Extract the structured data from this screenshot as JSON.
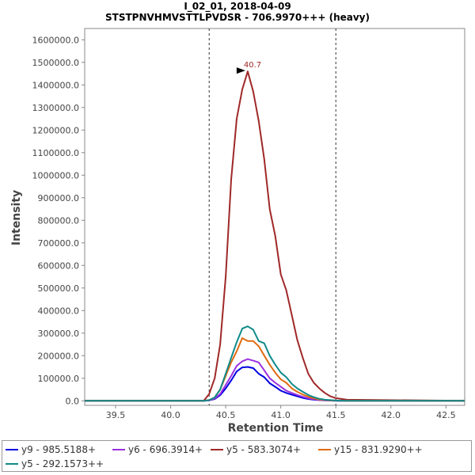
{
  "chart_data": {
    "type": "line",
    "title": "I_02_01, 2018-04-09",
    "subtitle": "STSTPNVHMVSTTLPVDSR - 706.9970+++ (heavy)",
    "xlabel": "Retention Time",
    "ylabel": "Intensity",
    "xlim": [
      39.22,
      42.67
    ],
    "ylim": [
      -20000,
      1650000
    ],
    "xticks": [
      "39.5",
      "40.0",
      "40.5",
      "41.0",
      "41.5",
      "42.0",
      "42.5"
    ],
    "xtick_values": [
      39.5,
      40.0,
      40.5,
      41.0,
      41.5,
      42.0,
      42.5
    ],
    "yticks": [
      "0.0",
      "100000.0",
      "200000.0",
      "300000.0",
      "400000.0",
      "500000.0",
      "600000.0",
      "700000.0",
      "800000.0",
      "900000.0",
      "1000000.0",
      "1100000.0",
      "1200000.0",
      "1300000.0",
      "1400000.0",
      "1500000.0",
      "1600000.0"
    ],
    "ytick_values": [
      0,
      100000,
      200000,
      300000,
      400000,
      500000,
      600000,
      700000,
      800000,
      900000,
      1000000,
      1100000,
      1200000,
      1300000,
      1400000,
      1500000,
      1600000
    ],
    "vlines": [
      40.35,
      41.5
    ],
    "peak_annotation": {
      "label": "40.7",
      "x": 40.7,
      "y": 1460000
    },
    "x": [
      39.22,
      40.3,
      40.35,
      40.4,
      40.45,
      40.5,
      40.55,
      40.6,
      40.65,
      40.7,
      40.75,
      40.8,
      40.85,
      40.9,
      40.95,
      41.0,
      41.05,
      41.1,
      41.15,
      41.2,
      41.25,
      41.3,
      41.35,
      41.4,
      41.45,
      41.5,
      41.6,
      42.67
    ],
    "series": [
      {
        "name": "y9 - 985.5188+",
        "color": "#0000e0",
        "values": [
          0,
          0,
          2000,
          8000,
          25000,
          55000,
          90000,
          130000,
          148000,
          150000,
          145000,
          120000,
          105000,
          78000,
          62000,
          45000,
          35000,
          27000,
          20000,
          13000,
          8000,
          5000,
          3000,
          2000,
          1000,
          500,
          0,
          0
        ]
      },
      {
        "name": "y6 - 696.3914+",
        "color": "#9b30e0",
        "values": [
          0,
          0,
          2000,
          10000,
          30000,
          70000,
          110000,
          155000,
          175000,
          185000,
          178000,
          170000,
          135000,
          100000,
          80000,
          62000,
          45000,
          35000,
          26000,
          18000,
          11000,
          7000,
          4000,
          2500,
          1500,
          1000,
          0,
          0
        ]
      },
      {
        "name": "y5 - 583.3074+",
        "color": "#a02828",
        "values": [
          0,
          0,
          30000,
          100000,
          250000,
          550000,
          980000,
          1250000,
          1380000,
          1460000,
          1370000,
          1240000,
          1070000,
          850000,
          730000,
          560000,
          490000,
          380000,
          270000,
          190000,
          120000,
          80000,
          55000,
          35000,
          20000,
          12000,
          5000,
          0
        ]
      },
      {
        "name": "y15 - 831.9290++",
        "color": "#e06a10",
        "values": [
          0,
          0,
          3000,
          15000,
          50000,
          110000,
          170000,
          220000,
          278000,
          265000,
          265000,
          242000,
          200000,
          160000,
          125000,
          95000,
          80000,
          55000,
          40000,
          28000,
          18000,
          11000,
          6000,
          4000,
          2000,
          1000,
          0,
          0
        ]
      },
      {
        "name": "y5 - 292.1573++",
        "color": "#108a8a",
        "values": [
          0,
          0,
          3000,
          15000,
          50000,
          120000,
          190000,
          260000,
          320000,
          330000,
          315000,
          265000,
          255000,
          200000,
          160000,
          125000,
          105000,
          75000,
          55000,
          40000,
          26000,
          16000,
          9000,
          5000,
          3000,
          1500,
          0,
          0
        ]
      }
    ]
  }
}
